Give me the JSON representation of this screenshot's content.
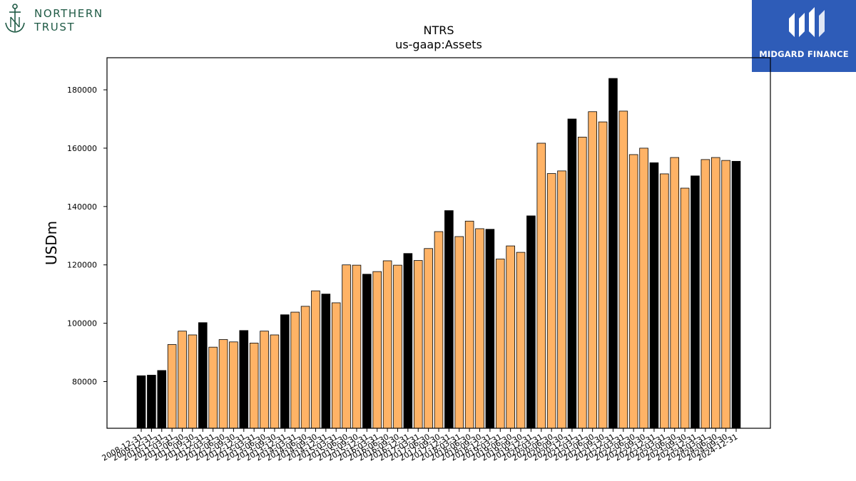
{
  "logos": {
    "northern_trust": {
      "line1": "NORTHERN",
      "line2": "TRUST",
      "color": "#1f5a45"
    },
    "midgard": {
      "text": "MIDGARD FINANCE",
      "background": "#2e5cb8"
    }
  },
  "chart_data": {
    "type": "bar",
    "title": "NTRS",
    "subtitle": "us-gaap:Assets",
    "xlabel": "",
    "ylabel": "USDm",
    "ylim": [
      64000,
      191000
    ],
    "yticks": [
      80000,
      100000,
      120000,
      140000,
      160000,
      180000
    ],
    "grid": false,
    "colors": {
      "q4": "#000000",
      "other": "#ffb366",
      "edge": "#000000"
    },
    "categories": [
      "2008-12-31",
      "2009-12-31",
      "2010-12-31",
      "2011-03-31",
      "2011-06-30",
      "2011-09-30",
      "2011-12-31",
      "2012-03-31",
      "2012-06-30",
      "2012-09-30",
      "2012-12-31",
      "2013-03-31",
      "2013-06-30",
      "2013-09-30",
      "2013-12-31",
      "2014-03-31",
      "2014-06-30",
      "2014-09-30",
      "2014-12-31",
      "2015-03-31",
      "2015-06-30",
      "2015-09-30",
      "2015-12-31",
      "2016-03-31",
      "2016-06-30",
      "2016-09-30",
      "2016-12-31",
      "2017-03-31",
      "2017-06-30",
      "2017-09-30",
      "2017-12-31",
      "2018-03-31",
      "2018-06-30",
      "2018-09-30",
      "2018-12-31",
      "2019-03-31",
      "2019-06-30",
      "2019-09-30",
      "2019-12-31",
      "2020-03-31",
      "2020-06-30",
      "2020-09-30",
      "2020-12-31",
      "2021-03-31",
      "2021-06-30",
      "2021-09-30",
      "2021-12-31",
      "2022-03-31",
      "2022-06-30",
      "2022-09-30",
      "2022-12-31",
      "2023-03-31",
      "2023-06-30",
      "2023-09-30",
      "2023-12-31",
      "2024-03-31",
      "2024-06-30",
      "2024-09-30",
      "2024-12-31"
    ],
    "values": [
      82000,
      82200,
      83800,
      92700,
      97300,
      96000,
      100200,
      91800,
      94400,
      93600,
      97500,
      93200,
      97300,
      96000,
      102900,
      103800,
      105800,
      111100,
      110000,
      107000,
      120000,
      119900,
      116800,
      117700,
      121400,
      119900,
      123900,
      121500,
      125600,
      131400,
      138600,
      129700,
      135000,
      132400,
      132200,
      122000,
      126500,
      124300,
      136800,
      161700,
      151300,
      152200,
      170000,
      163800,
      172500,
      169000,
      183900,
      172700,
      157800,
      160000,
      155000,
      151200,
      156800,
      146300,
      150500,
      156100,
      156800,
      155800,
      155500
    ]
  }
}
